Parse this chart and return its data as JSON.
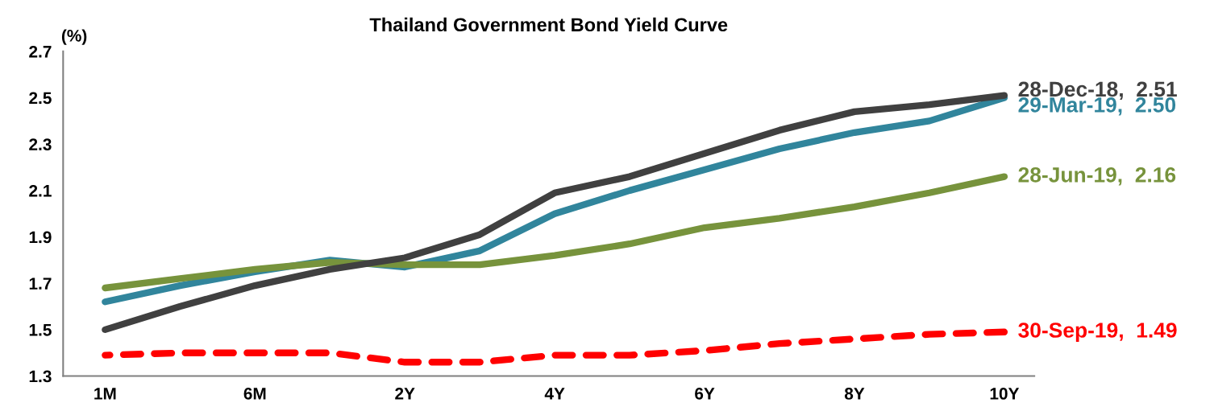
{
  "chart_data": {
    "type": "line",
    "title": "Thailand Government Bond Yield Curve",
    "ylabel": "(%)",
    "categories": [
      "1M",
      null,
      "6M",
      null,
      "2Y",
      null,
      "4Y",
      null,
      "6Y",
      null,
      "8Y",
      null,
      "10Y"
    ],
    "ylim": [
      1.3,
      2.7
    ],
    "yticks": [
      1.3,
      1.5,
      1.7,
      1.9,
      2.1,
      2.3,
      2.5,
      2.7
    ],
    "grid": false,
    "legend": false,
    "marker": "none",
    "series": [
      {
        "name": "28-Dec-18,  2.51",
        "color": "#404040",
        "line_style": "solid",
        "values": [
          1.5,
          1.6,
          1.69,
          1.76,
          1.81,
          1.91,
          2.09,
          2.16,
          2.26,
          2.36,
          2.44,
          2.47,
          2.51
        ]
      },
      {
        "name": "29-Mar-19,  2.50",
        "color": "#31859c",
        "line_style": "solid",
        "values": [
          1.62,
          1.69,
          1.75,
          1.8,
          1.77,
          1.84,
          2.0,
          2.1,
          2.19,
          2.28,
          2.35,
          2.4,
          2.5
        ]
      },
      {
        "name": "28-Jun-19,  2.16",
        "color": "#77933c",
        "line_style": "solid",
        "values": [
          1.68,
          1.72,
          1.76,
          1.79,
          1.78,
          1.78,
          1.82,
          1.87,
          1.94,
          1.98,
          2.03,
          2.09,
          2.16
        ]
      },
      {
        "name": "30-Sep-19,  1.49",
        "color": "#ff0000",
        "line_style": "dashed",
        "values": [
          1.39,
          1.4,
          1.4,
          1.4,
          1.36,
          1.36,
          1.39,
          1.39,
          1.41,
          1.44,
          1.46,
          1.48,
          1.49
        ]
      }
    ]
  }
}
